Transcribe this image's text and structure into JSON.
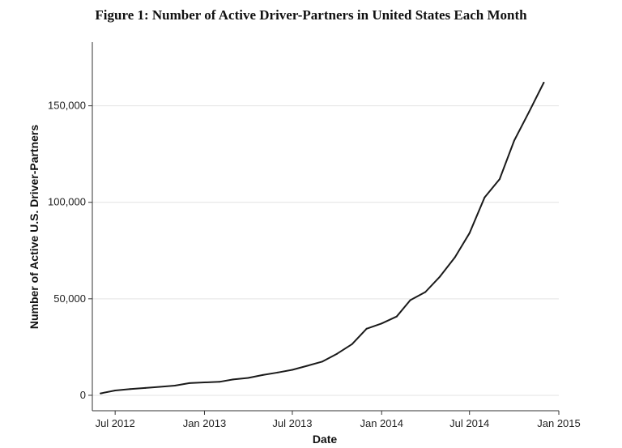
{
  "chart_data": {
    "type": "line",
    "title": "Figure 1: Number of Active Driver-Partners in United States Each Month",
    "xlabel": "Date",
    "ylabel": "Number of Active U.S. Driver-Partners",
    "x_tick_labels": [
      "Jul 2012",
      "Jan 2013",
      "Jul 2013",
      "Jan 2014",
      "Jul 2014",
      "Jan 2015"
    ],
    "x_ticks": [
      "2012-07-01",
      "2013-01-01",
      "2013-07-01",
      "2014-01-01",
      "2014-07-01",
      "2015-01-01"
    ],
    "y_tick_labels": [
      "0",
      "50,000",
      "100,000",
      "150,000"
    ],
    "y_ticks": [
      0,
      50000,
      100000,
      150000
    ],
    "xlim": [
      "2012-05-15",
      "2015-01-01"
    ],
    "ylim": [
      -8000,
      183000
    ],
    "grid": true,
    "series": [
      {
        "color": "#1a1a1a",
        "x": [
          "2012-06-01",
          "2012-07-01",
          "2012-08-01",
          "2012-09-01",
          "2012-10-01",
          "2012-11-01",
          "2012-12-01",
          "2013-01-01",
          "2013-02-01",
          "2013-03-01",
          "2013-04-01",
          "2013-05-01",
          "2013-06-01",
          "2013-07-01",
          "2013-08-01",
          "2013-09-01",
          "2013-10-01",
          "2013-11-01",
          "2013-12-01",
          "2014-01-01",
          "2014-02-01",
          "2014-03-01",
          "2014-04-01",
          "2014-05-01",
          "2014-06-01",
          "2014-07-01",
          "2014-08-01",
          "2014-09-01",
          "2014-10-01",
          "2014-11-01",
          "2014-12-01"
        ],
        "values": [
          1000,
          2500,
          3200,
          3800,
          4400,
          5000,
          6300,
          6700,
          7000,
          8200,
          9000,
          10500,
          11800,
          13200,
          15300,
          17500,
          21500,
          26500,
          34500,
          37200,
          40800,
          49300,
          53500,
          61500,
          71500,
          84000,
          102500,
          112000,
          132000,
          147000,
          162000
        ]
      }
    ]
  }
}
